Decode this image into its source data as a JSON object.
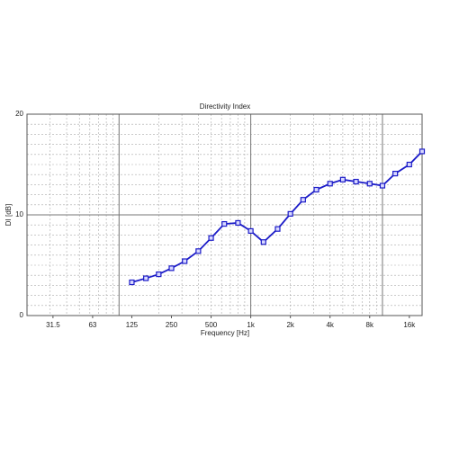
{
  "chart_data": {
    "type": "line",
    "title": "Directivity Index",
    "x_label": "Frequency [Hz]",
    "y_label": "DI [dB]",
    "x_scale": "log",
    "x": [
      125,
      160,
      200,
      250,
      315,
      400,
      500,
      630,
      800,
      1000,
      1250,
      1600,
      2000,
      2500,
      3150,
      4000,
      5000,
      6300,
      8000,
      10000,
      12500,
      16000,
      20000
    ],
    "series": [
      {
        "name": "DI",
        "color": "#1c1cc8",
        "values": [
          3.3,
          3.7,
          4.1,
          4.7,
          5.4,
          6.4,
          7.7,
          9.1,
          9.2,
          8.4,
          7.3,
          8.6,
          10.1,
          11.5,
          12.5,
          13.1,
          13.5,
          13.3,
          13.1,
          12.9,
          14.1,
          15.0,
          16.3
        ]
      }
    ],
    "xlim": [
      20,
      20000
    ],
    "ylim": [
      0,
      20
    ],
    "xticks": [
      31.5,
      63,
      125,
      250,
      500,
      {
        "value": 1000,
        "label": "1k"
      },
      {
        "value": 2000,
        "label": "2k"
      },
      {
        "value": 4000,
        "label": "4k"
      },
      {
        "value": 8000,
        "label": "8k"
      },
      {
        "value": 16000,
        "label": "16k"
      }
    ],
    "x_major_grid": [
      100,
      1000,
      10000
    ],
    "yticks": [
      0,
      10,
      20
    ],
    "grid": true
  }
}
